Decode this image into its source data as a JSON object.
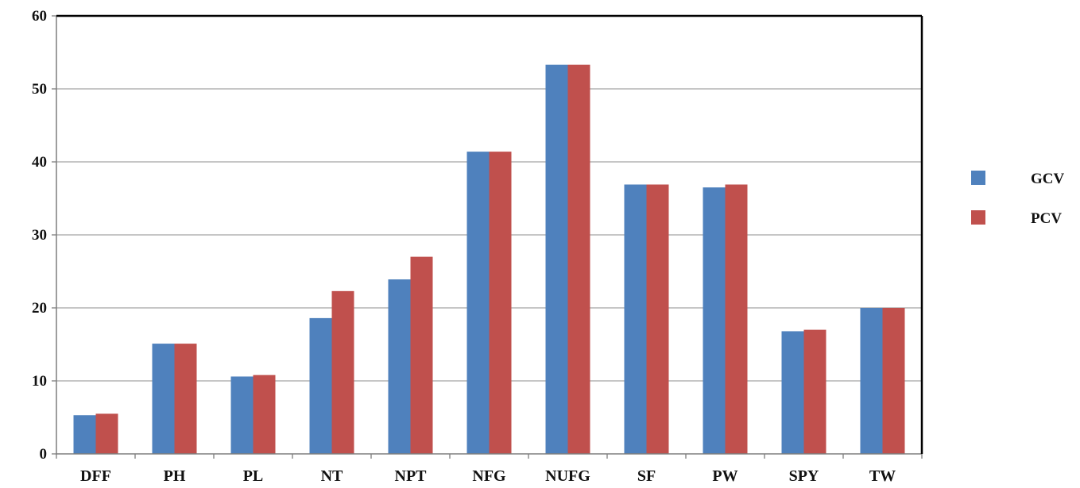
{
  "chart_data": {
    "type": "bar",
    "categories": [
      "DFF",
      "PH",
      "PL",
      "NT",
      "NPT",
      "NFG",
      "NUFG",
      "SF",
      "PW",
      "SPY",
      "TW"
    ],
    "series": [
      {
        "name": "GCV",
        "color": "#4F81BD",
        "values": [
          5.3,
          15.1,
          10.6,
          18.6,
          23.9,
          41.4,
          53.3,
          36.9,
          36.5,
          16.8,
          20.0
        ]
      },
      {
        "name": "PCV",
        "color": "#C0504D",
        "values": [
          5.5,
          15.1,
          10.8,
          22.3,
          27.0,
          41.4,
          53.3,
          36.9,
          36.9,
          17.0,
          20.0
        ]
      }
    ],
    "title": "",
    "xlabel": "",
    "ylabel": "",
    "ylim": [
      0,
      60
    ],
    "yticks": [
      "0",
      "10",
      "20",
      "30",
      "40",
      "50",
      "60"
    ],
    "grid": true,
    "legend_position": "right"
  }
}
